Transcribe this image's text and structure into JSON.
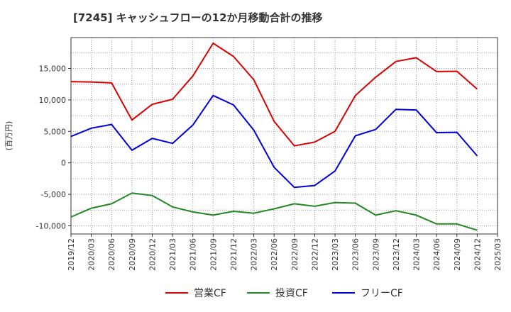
{
  "chart_data": {
    "type": "line",
    "title": "[7245]  キャッシュフローの12か月移動合計の推移",
    "xlabel": "",
    "ylabel": "(百万円)",
    "ylim": [
      -11300,
      19900
    ],
    "yticks": [
      15000,
      10000,
      5000,
      0,
      -5000,
      -10000
    ],
    "ytick_labels": [
      "15,000",
      "10,000",
      "5,000",
      "0",
      "-5,000",
      "-10,000"
    ],
    "categories": [
      "2019/12",
      "2020/03",
      "2020/06",
      "2020/09",
      "2020/12",
      "2021/03",
      "2021/06",
      "2021/09",
      "2021/12",
      "2022/03",
      "2022/06",
      "2022/09",
      "2022/12",
      "2023/03",
      "2023/06",
      "2023/09",
      "2023/12",
      "2024/03",
      "2024/06",
      "2024/09",
      "2024/12",
      "2025/03"
    ],
    "series": [
      {
        "name": "営業CF",
        "color": "#dd0000",
        "values": [
          12900,
          12850,
          12700,
          6800,
          9300,
          10100,
          13800,
          19000,
          16900,
          13200,
          6600,
          2700,
          3300,
          5000,
          10700,
          13600,
          16100,
          16700,
          14500,
          14550,
          11700,
          null
        ]
      },
      {
        "name": "投資CF",
        "color": "#228822",
        "values": [
          -8600,
          -7200,
          -6500,
          -4800,
          -5200,
          -7000,
          -7800,
          -8300,
          -7700,
          -8000,
          -7300,
          -6500,
          -6900,
          -6300,
          -6400,
          -8300,
          -7600,
          -8300,
          -9700,
          -9700,
          -10700,
          null
        ]
      },
      {
        "name": "フリーCF",
        "color": "#0000dd",
        "values": [
          4200,
          5500,
          6100,
          2000,
          3900,
          3100,
          6000,
          10700,
          9200,
          5200,
          -700,
          -3900,
          -3600,
          -1300,
          4300,
          5300,
          8500,
          8400,
          4800,
          4850,
          1100,
          null
        ]
      }
    ]
  }
}
